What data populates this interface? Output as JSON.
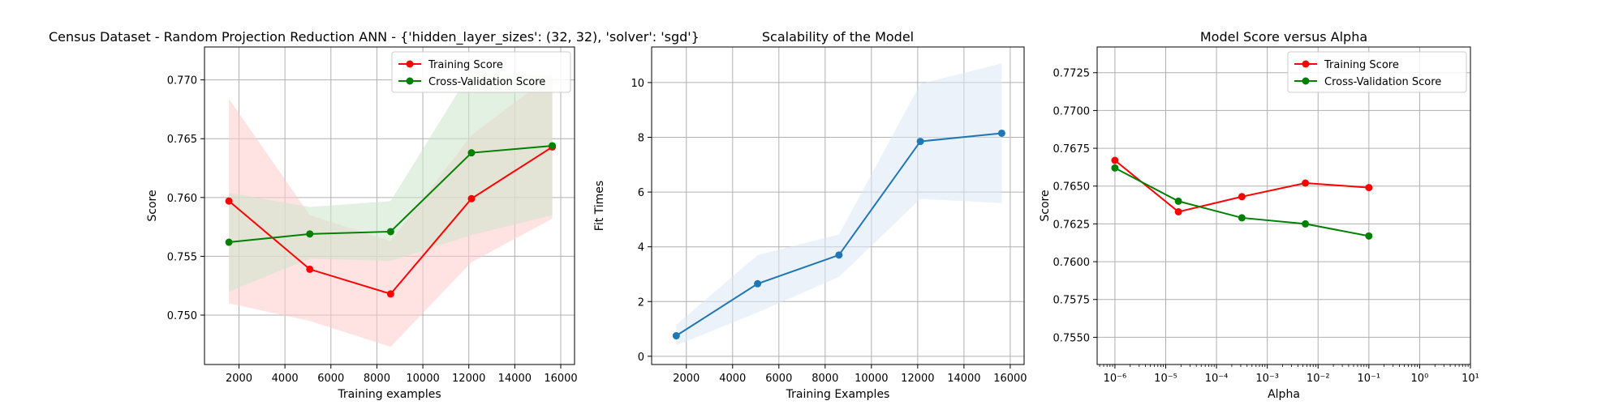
{
  "figure": {
    "title_left": "Census Dataset - Random Projection Reduction ANN - {'hidden_layer_sizes': (32, 32), 'solver': 'sgd'}"
  },
  "chart_data": [
    {
      "type": "line",
      "title": "",
      "xlabel": "Training examples",
      "ylabel": "Score",
      "xlim": [
        500,
        16600
      ],
      "ylim": [
        0.7458,
        0.7728
      ],
      "xticks": [
        2000,
        4000,
        6000,
        8000,
        10000,
        12000,
        14000,
        16000
      ],
      "yticks": [
        0.75,
        0.755,
        0.76,
        0.765,
        0.77
      ],
      "ytick_decimals": 3,
      "grid": true,
      "legend": "upper-right",
      "x": [
        1563,
        5081,
        8598,
        12115,
        15632
      ],
      "series": [
        {
          "name": "Training Score",
          "color": "#ff0000",
          "fill": "#ffcccc",
          "values": [
            0.7597,
            0.7539,
            0.7518,
            0.7599,
            0.7643
          ],
          "band_low": [
            0.751,
            0.7495,
            0.7473,
            0.7545,
            0.7582
          ],
          "band_high": [
            0.7684,
            0.7585,
            0.7563,
            0.7653,
            0.7705
          ]
        },
        {
          "name": "Cross-Validation Score",
          "color": "#008000",
          "fill": "#cce6cc",
          "values": [
            0.7562,
            0.7569,
            0.7571,
            0.7638,
            0.7644
          ],
          "band_low": [
            0.752,
            0.7548,
            0.7546,
            0.7568,
            0.7585
          ],
          "band_high": [
            0.7604,
            0.7592,
            0.7597,
            0.7708,
            0.7703
          ]
        }
      ]
    },
    {
      "type": "line",
      "title": "Scalability of the Model",
      "xlabel": "Training Examples",
      "ylabel": "Fit Times",
      "xlim": [
        500,
        16600
      ],
      "ylim": [
        -0.3,
        11.3
      ],
      "xticks": [
        2000,
        4000,
        6000,
        8000,
        10000,
        12000,
        14000,
        16000
      ],
      "yticks": [
        0,
        2,
        4,
        6,
        8,
        10
      ],
      "ytick_decimals": 0,
      "grid": true,
      "legend": "none",
      "x": [
        1563,
        5081,
        8598,
        12115,
        15632
      ],
      "series": [
        {
          "name": "",
          "color": "#1f77b4",
          "fill": "#dce8f4",
          "values": [
            0.75,
            2.65,
            3.7,
            7.85,
            8.15
          ],
          "band_low": [
            0.4,
            1.6,
            2.9,
            5.75,
            5.6
          ],
          "band_high": [
            1.15,
            3.7,
            4.45,
            9.95,
            10.7
          ]
        }
      ]
    },
    {
      "type": "line",
      "title": "Model Score versus Alpha",
      "xlabel": "Alpha",
      "ylabel": "Score",
      "xscale": "log",
      "xlim_log10": [
        -6.35,
        1.0
      ],
      "ylim": [
        0.7532,
        0.7742
      ],
      "xticks_exp": [
        -6,
        -5,
        -4,
        -3,
        -2,
        -1,
        0,
        1
      ],
      "xtick_labels": [
        "10⁻⁶",
        "10⁻⁵",
        "10⁻⁴",
        "10⁻³",
        "10⁻²",
        "10⁻¹",
        "10⁰",
        "10¹"
      ],
      "yticks": [
        0.755,
        0.7575,
        0.76,
        0.7625,
        0.765,
        0.7675,
        0.77,
        0.7725
      ],
      "ytick_decimals": 4,
      "grid": true,
      "legend": "upper-right",
      "x": [
        1e-06,
        1.778e-05,
        0.0003162,
        0.005623,
        0.1
      ],
      "series": [
        {
          "name": "Training Score",
          "color": "#ff0000",
          "values": [
            0.7667,
            0.7633,
            0.7643,
            0.7652,
            0.7649
          ]
        },
        {
          "name": "Cross-Validation Score",
          "color": "#008000",
          "values": [
            0.7662,
            0.764,
            0.7629,
            0.7625,
            0.7617
          ]
        }
      ]
    }
  ]
}
